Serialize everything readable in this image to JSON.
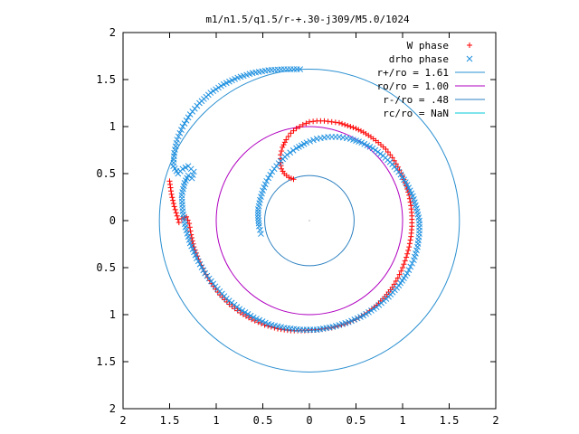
{
  "chart_data": {
    "type": "scatter",
    "title": "m1/n1.5/q1.5/r-+.30-j309/M5.0/1024",
    "xlabel": "",
    "ylabel": "",
    "xlim": [
      -2,
      2
    ],
    "ylim": [
      -2,
      2
    ],
    "x_ticks": [
      "2",
      "1.5",
      "1",
      "0.5",
      "0",
      "0.5",
      "1",
      "1.5",
      "2"
    ],
    "y_ticks": [
      "2",
      "1.5",
      "1",
      "0.5",
      "0",
      "0.5",
      "1",
      "1.5",
      "2"
    ],
    "grid": false,
    "legend_position": "top-right",
    "colors": {
      "w_phase": "#ff0000",
      "drho_phase": "#1e90e0",
      "r_plus": "#2a8fd0",
      "r_o": "#b000c0",
      "r_minus": "#2a7fc0",
      "r_c": "#00c8d8"
    },
    "legend": [
      {
        "label": "W phase",
        "marker": "+",
        "color_key": "w_phase"
      },
      {
        "label": "drho phase",
        "marker": "x",
        "color_key": "drho_phase"
      },
      {
        "label": "r+/ro = 1.61",
        "marker": "line",
        "color_key": "r_plus"
      },
      {
        "label": "ro/ro = 1.00",
        "marker": "line",
        "color_key": "r_o"
      },
      {
        "label": "r-/ro = .48",
        "marker": "line",
        "color_key": "r_minus"
      },
      {
        "label": "rc/ro = NaN",
        "marker": "line",
        "color_key": "r_c"
      }
    ],
    "circles": [
      {
        "name": "r+/ro",
        "radius": 1.61,
        "color_key": "r_plus"
      },
      {
        "name": "ro/ro",
        "radius": 1.0,
        "color_key": "r_o"
      },
      {
        "name": "r-/ro",
        "radius": 0.48,
        "color_key": "r_minus"
      }
    ],
    "series": [
      {
        "name": "W phase",
        "marker": "+",
        "color_key": "w_phase",
        "points": [
          [
            -0.17,
            0.44
          ],
          [
            -0.22,
            0.46
          ],
          [
            -0.27,
            0.5
          ],
          [
            -0.3,
            0.55
          ],
          [
            -0.31,
            0.62
          ],
          [
            -0.31,
            0.7
          ],
          [
            -0.29,
            0.78
          ],
          [
            -0.25,
            0.86
          ],
          [
            -0.2,
            0.93
          ],
          [
            -0.14,
            0.98
          ],
          [
            -0.07,
            1.02
          ],
          [
            0.0,
            1.05
          ],
          [
            0.08,
            1.06
          ],
          [
            0.16,
            1.06
          ],
          [
            0.24,
            1.05
          ],
          [
            0.32,
            1.04
          ],
          [
            0.41,
            1.01
          ],
          [
            0.5,
            0.98
          ],
          [
            0.58,
            0.94
          ],
          [
            0.66,
            0.89
          ],
          [
            0.74,
            0.83
          ],
          [
            0.82,
            0.76
          ],
          [
            0.89,
            0.67
          ],
          [
            0.95,
            0.57
          ],
          [
            1.0,
            0.47
          ],
          [
            1.04,
            0.37
          ],
          [
            1.07,
            0.27
          ],
          [
            1.09,
            0.16
          ],
          [
            1.1,
            0.05
          ],
          [
            1.1,
            -0.06
          ],
          [
            1.09,
            -0.17
          ],
          [
            1.07,
            -0.28
          ],
          [
            1.04,
            -0.39
          ],
          [
            1.0,
            -0.5
          ],
          [
            0.95,
            -0.61
          ],
          [
            0.89,
            -0.71
          ],
          [
            0.81,
            -0.81
          ],
          [
            0.72,
            -0.9
          ],
          [
            0.62,
            -0.98
          ],
          [
            0.5,
            -1.05
          ],
          [
            0.38,
            -1.1
          ],
          [
            0.24,
            -1.14
          ],
          [
            0.1,
            -1.16
          ],
          [
            -0.05,
            -1.17
          ],
          [
            -0.2,
            -1.17
          ],
          [
            -0.34,
            -1.15
          ],
          [
            -0.48,
            -1.11
          ],
          [
            -0.62,
            -1.05
          ],
          [
            -0.74,
            -0.98
          ],
          [
            -0.86,
            -0.89
          ],
          [
            -0.96,
            -0.79
          ],
          [
            -1.05,
            -0.67
          ],
          [
            -1.13,
            -0.54
          ],
          [
            -1.19,
            -0.41
          ],
          [
            -1.24,
            -0.28
          ],
          [
            -1.27,
            -0.15
          ],
          [
            -1.29,
            -0.03
          ],
          [
            -1.32,
            0.04
          ],
          [
            -1.37,
            0.02
          ],
          [
            -1.4,
            -0.02
          ],
          [
            -1.42,
            0.05
          ],
          [
            -1.45,
            0.15
          ],
          [
            -1.48,
            0.28
          ],
          [
            -1.5,
            0.42
          ]
        ]
      },
      {
        "name": "drho phase",
        "marker": "x",
        "color_key": "drho_phase",
        "points": [
          [
            -0.52,
            -0.14
          ],
          [
            -0.54,
            -0.06
          ],
          [
            -0.55,
            0.03
          ],
          [
            -0.55,
            0.12
          ],
          [
            -0.53,
            0.22
          ],
          [
            -0.5,
            0.32
          ],
          [
            -0.46,
            0.42
          ],
          [
            -0.4,
            0.52
          ],
          [
            -0.33,
            0.61
          ],
          [
            -0.24,
            0.7
          ],
          [
            -0.14,
            0.77
          ],
          [
            -0.03,
            0.83
          ],
          [
            0.08,
            0.87
          ],
          [
            0.2,
            0.89
          ],
          [
            0.32,
            0.89
          ],
          [
            0.44,
            0.87
          ],
          [
            0.56,
            0.83
          ],
          [
            0.68,
            0.77
          ],
          [
            0.79,
            0.69
          ],
          [
            0.89,
            0.6
          ],
          [
            0.98,
            0.49
          ],
          [
            1.05,
            0.38
          ],
          [
            1.11,
            0.26
          ],
          [
            1.15,
            0.13
          ],
          [
            1.18,
            0.0
          ],
          [
            1.18,
            -0.14
          ],
          [
            1.16,
            -0.28
          ],
          [
            1.12,
            -0.42
          ],
          [
            1.05,
            -0.56
          ],
          [
            0.96,
            -0.69
          ],
          [
            0.85,
            -0.81
          ],
          [
            0.72,
            -0.92
          ],
          [
            0.58,
            -1.01
          ],
          [
            0.42,
            -1.08
          ],
          [
            0.25,
            -1.13
          ],
          [
            0.08,
            -1.16
          ],
          [
            -0.1,
            -1.16
          ],
          [
            -0.27,
            -1.14
          ],
          [
            -0.44,
            -1.1
          ],
          [
            -0.6,
            -1.03
          ],
          [
            -0.75,
            -0.94
          ],
          [
            -0.89,
            -0.83
          ],
          [
            -1.01,
            -0.7
          ],
          [
            -1.12,
            -0.56
          ],
          [
            -1.21,
            -0.4
          ],
          [
            -1.28,
            -0.24
          ],
          [
            -1.33,
            -0.07
          ],
          [
            -1.36,
            0.1
          ],
          [
            -1.37,
            0.27
          ],
          [
            -1.34,
            0.4
          ],
          [
            -1.3,
            0.48
          ],
          [
            -1.26,
            0.45
          ],
          [
            -1.24,
            0.52
          ],
          [
            -1.3,
            0.58
          ],
          [
            -1.36,
            0.55
          ],
          [
            -1.41,
            0.5
          ],
          [
            -1.46,
            0.58
          ],
          [
            -1.45,
            0.72
          ],
          [
            -1.42,
            0.86
          ],
          [
            -1.36,
            1.0
          ],
          [
            -1.28,
            1.13
          ],
          [
            -1.18,
            1.25
          ],
          [
            -1.06,
            1.36
          ],
          [
            -0.92,
            1.45
          ],
          [
            -0.77,
            1.52
          ],
          [
            -0.61,
            1.57
          ],
          [
            -0.44,
            1.6
          ],
          [
            -0.27,
            1.61
          ],
          [
            -0.1,
            1.61
          ]
        ]
      }
    ]
  }
}
